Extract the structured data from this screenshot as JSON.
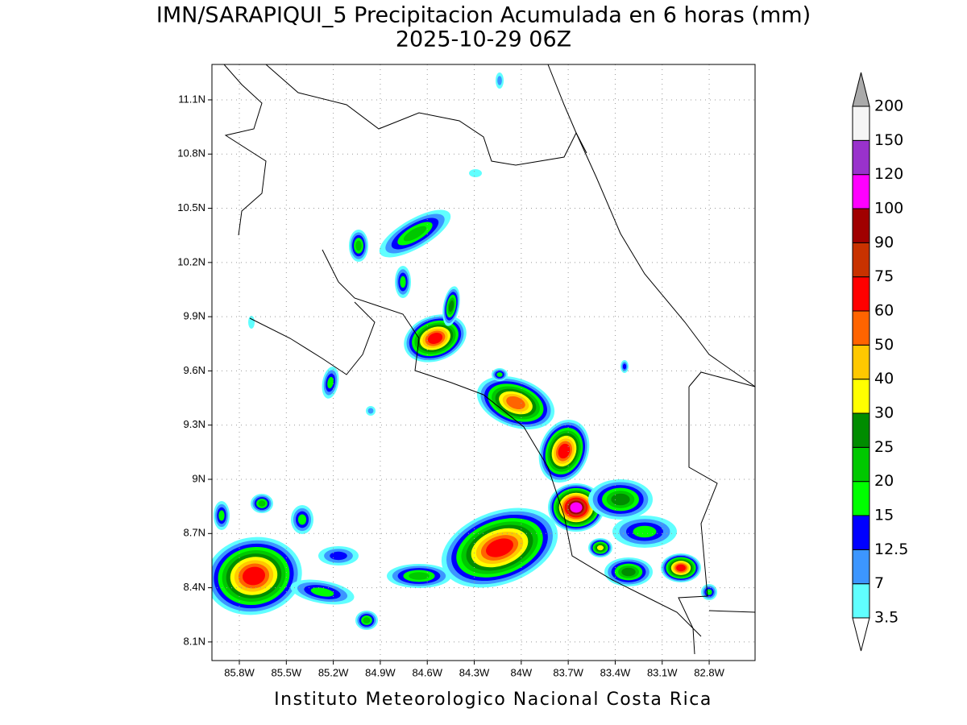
{
  "header": {
    "title": "IMN/SARAPIQUI_5 Precipitacion Acumulada en 6 horas (mm)",
    "subtitle": "2025-10-29 06Z"
  },
  "map": {
    "lonlim": [
      -85.975,
      -82.507
    ],
    "latlim": [
      7.997,
      11.296
    ],
    "lon_ticks": [
      {
        "value": -85.8,
        "label": "85.8W"
      },
      {
        "value": -85.5,
        "label": "85.5W"
      },
      {
        "value": -85.2,
        "label": "85.2W"
      },
      {
        "value": -84.9,
        "label": "84.9W"
      },
      {
        "value": -84.6,
        "label": "84.6W"
      },
      {
        "value": -84.3,
        "label": "84.3W"
      },
      {
        "value": -84.0,
        "label": "84W"
      },
      {
        "value": -83.7,
        "label": "83.7W"
      },
      {
        "value": -83.4,
        "label": "83.4W"
      },
      {
        "value": -83.1,
        "label": "83.1W"
      },
      {
        "value": -82.8,
        "label": "82.8W"
      }
    ],
    "lat_ticks": [
      {
        "value": 8.1,
        "label": "8.1N"
      },
      {
        "value": 8.4,
        "label": "8.4N"
      },
      {
        "value": 8.7,
        "label": "8.7N"
      },
      {
        "value": 9.0,
        "label": "9N"
      },
      {
        "value": 9.3,
        "label": "9.3N"
      },
      {
        "value": 9.6,
        "label": "9.6N"
      },
      {
        "value": 9.9,
        "label": "9.9N"
      },
      {
        "value": 10.2,
        "label": "10.2N"
      },
      {
        "value": 10.5,
        "label": "10.5N"
      },
      {
        "value": 10.8,
        "label": "10.8N"
      },
      {
        "value": 11.1,
        "label": "11.1N"
      }
    ],
    "grid": true
  },
  "colorbar": {
    "levels": [
      3.5,
      7,
      12.5,
      15,
      20,
      25,
      30,
      40,
      50,
      60,
      75,
      90,
      100,
      120,
      150,
      200
    ],
    "colors": [
      "#60ffff",
      "#3c96ff",
      "#0000ff",
      "#00ff00",
      "#00c800",
      "#008c00",
      "#ffff00",
      "#ffc800",
      "#ff6400",
      "#ff0000",
      "#c83200",
      "#a00000",
      "#ff00ff",
      "#9932cc",
      "#f5f5f5"
    ],
    "over_color": "#aaaaaa",
    "under_color": "#ffffff"
  },
  "footer": {
    "text": "Instituto Meteorologico Nacional Costa Rica"
  }
}
